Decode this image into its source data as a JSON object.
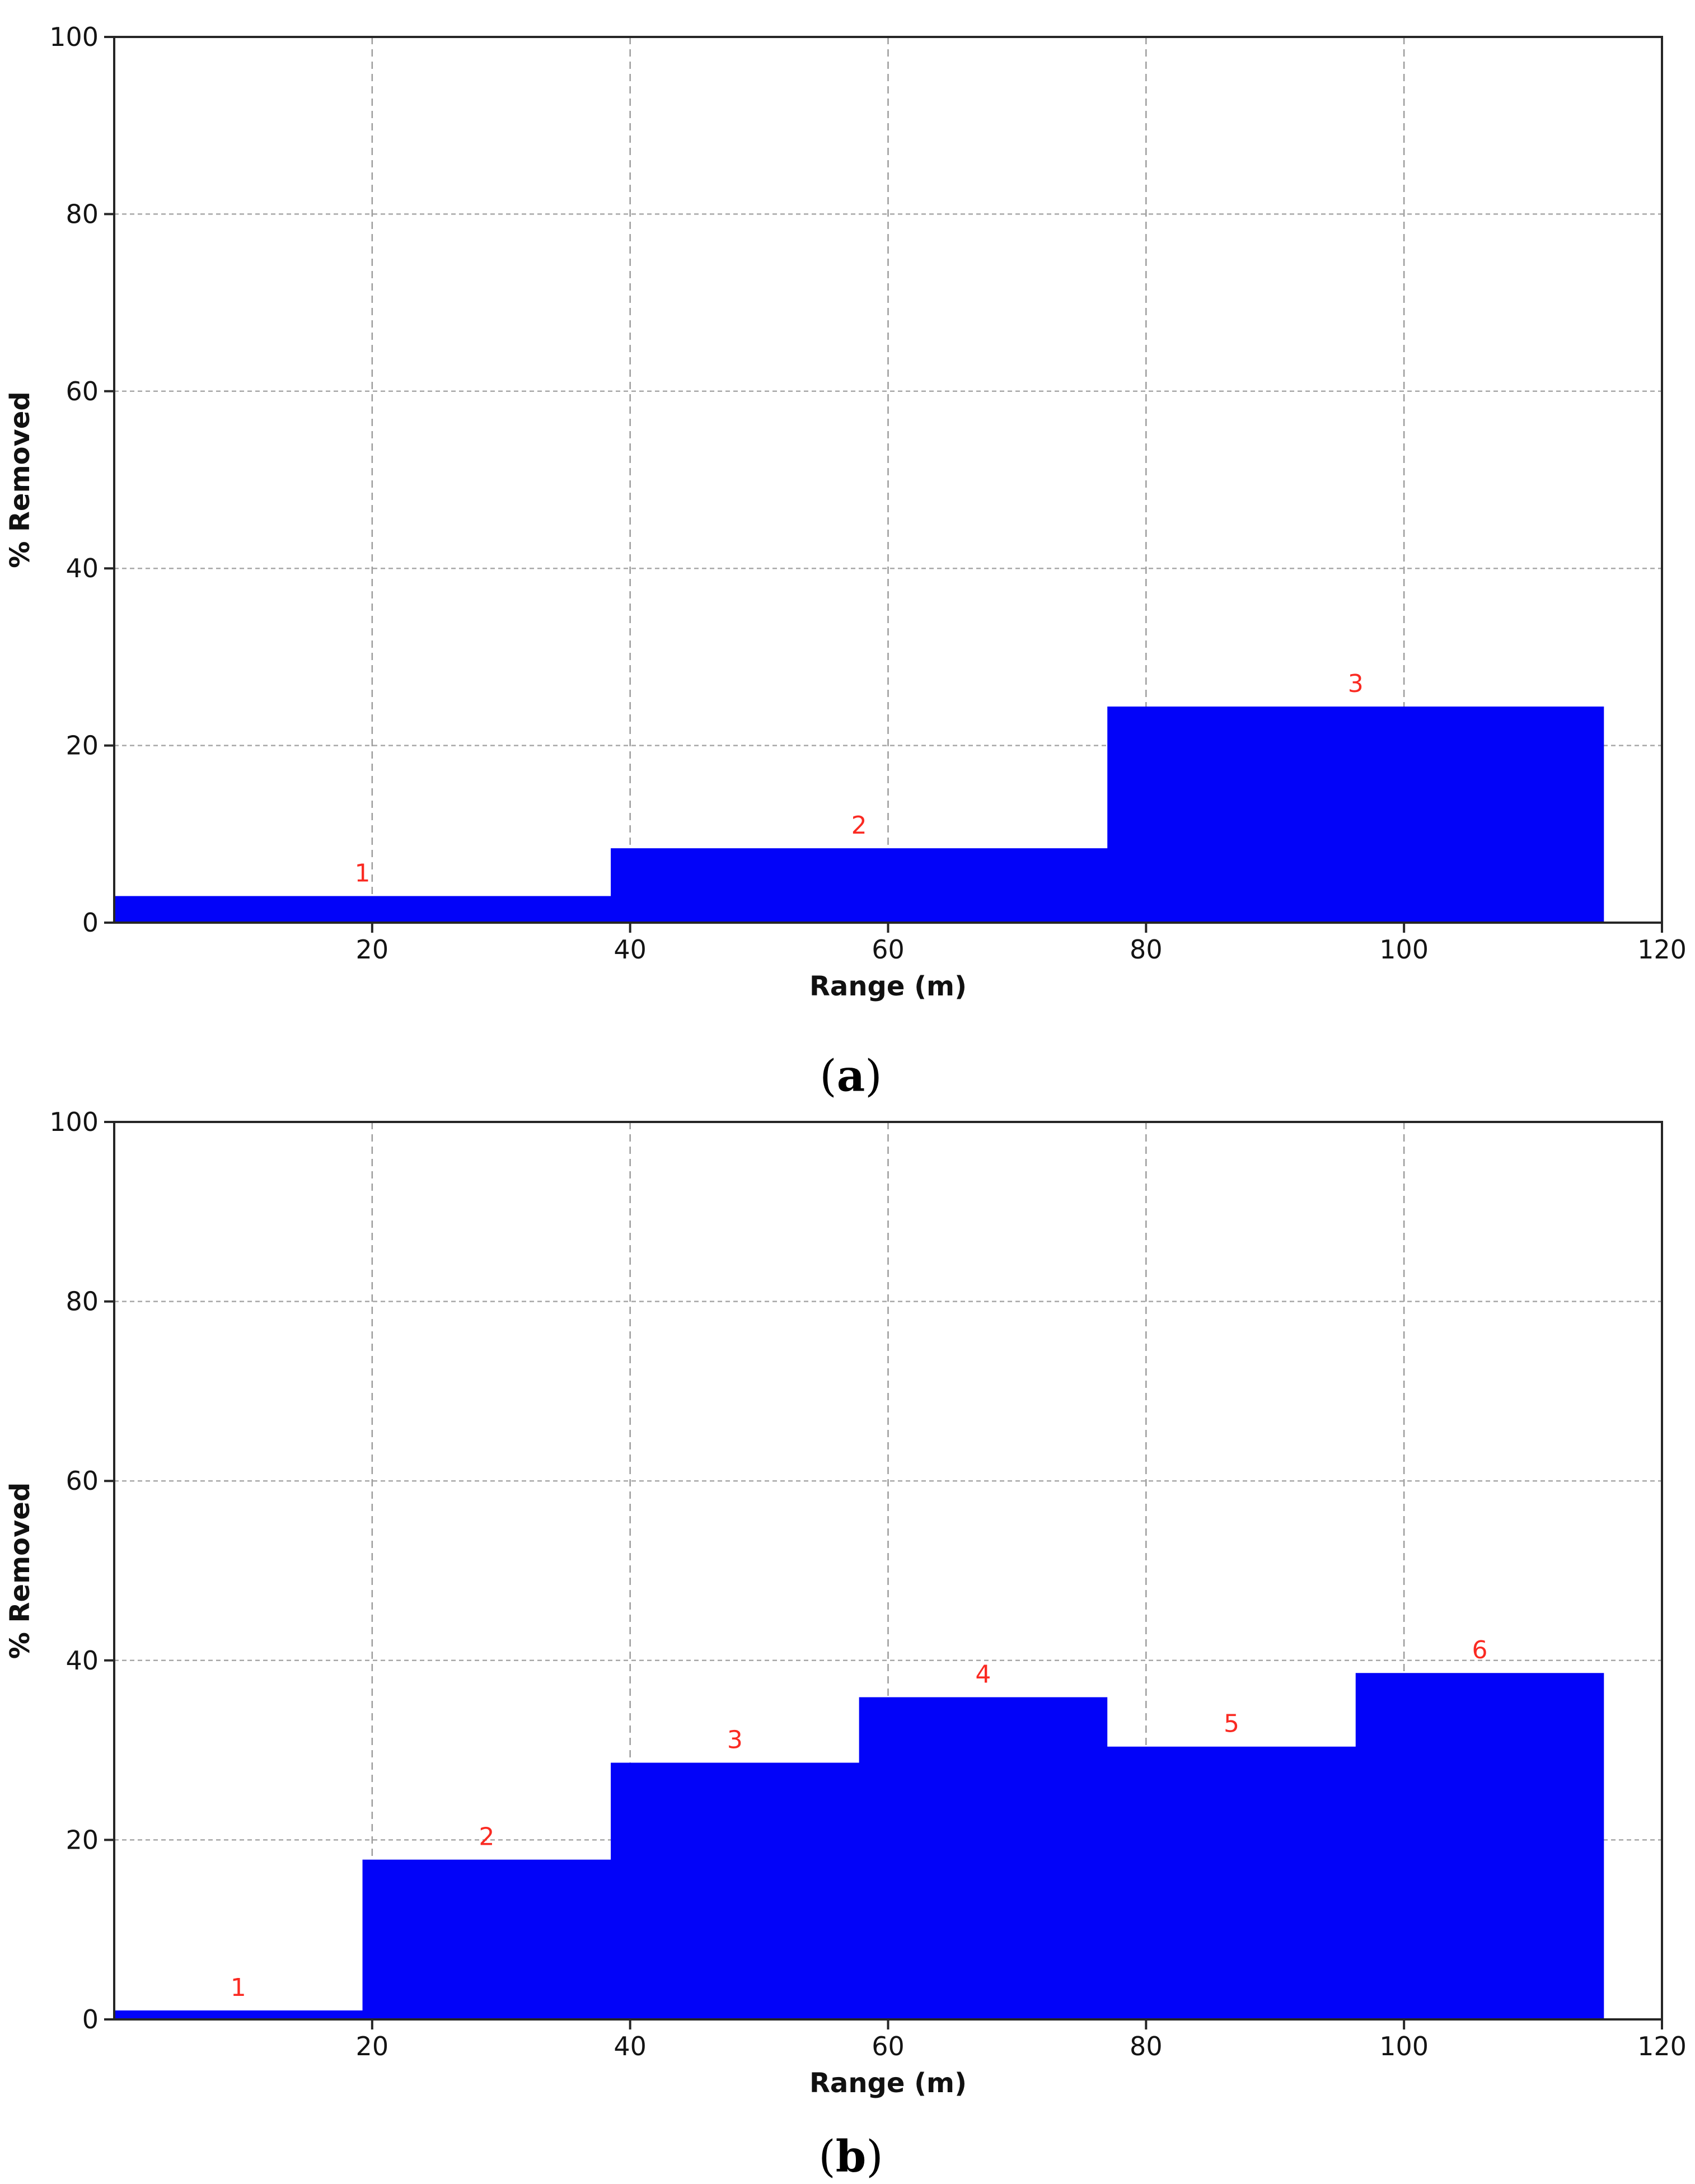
{
  "figure": {
    "background": "#ffffff"
  },
  "chart_data": [
    {
      "id": "a",
      "type": "area",
      "caption": {
        "open": "(",
        "letter": "a",
        "close": ")"
      },
      "xlabel": "Range (m)",
      "ylabel": "% Removed",
      "xlim": [
        0,
        120
      ],
      "ylim": [
        0,
        100
      ],
      "xticks": [
        20,
        40,
        60,
        80,
        100,
        120
      ],
      "yticks": [
        0,
        20,
        40,
        60,
        80,
        100
      ],
      "vgrid": [
        20,
        40,
        60,
        80,
        100
      ],
      "hgrid": [
        20,
        40,
        60,
        80
      ],
      "grid": "on",
      "bin_edges": [
        0,
        38.5,
        77,
        115.5
      ],
      "values": [
        3.0,
        8.4,
        24.4
      ],
      "bin_labels": [
        "1",
        "2",
        "3"
      ],
      "fill_color": "#0203f9",
      "bin_label_color": "#fa2a22"
    },
    {
      "id": "b",
      "type": "area",
      "caption": {
        "open": "(",
        "letter": "b",
        "close": ")"
      },
      "xlabel": "Range (m)",
      "ylabel": "% Removed",
      "xlim": [
        0,
        120
      ],
      "ylim": [
        0,
        100
      ],
      "xticks": [
        20,
        40,
        60,
        80,
        100,
        120
      ],
      "yticks": [
        0,
        20,
        40,
        60,
        80,
        100
      ],
      "vgrid": [
        20,
        40,
        60,
        80,
        100
      ],
      "hgrid": [
        20,
        40,
        60,
        80
      ],
      "grid": "on",
      "bin_edges": [
        0,
        19.25,
        38.5,
        57.75,
        77,
        96.25,
        115.5
      ],
      "values": [
        1.0,
        17.8,
        28.6,
        35.9,
        30.4,
        38.6
      ],
      "bin_labels": [
        "1",
        "2",
        "3",
        "4",
        "5",
        "6"
      ],
      "fill_color": "#0203f9",
      "bin_label_color": "#fa2a22"
    }
  ]
}
